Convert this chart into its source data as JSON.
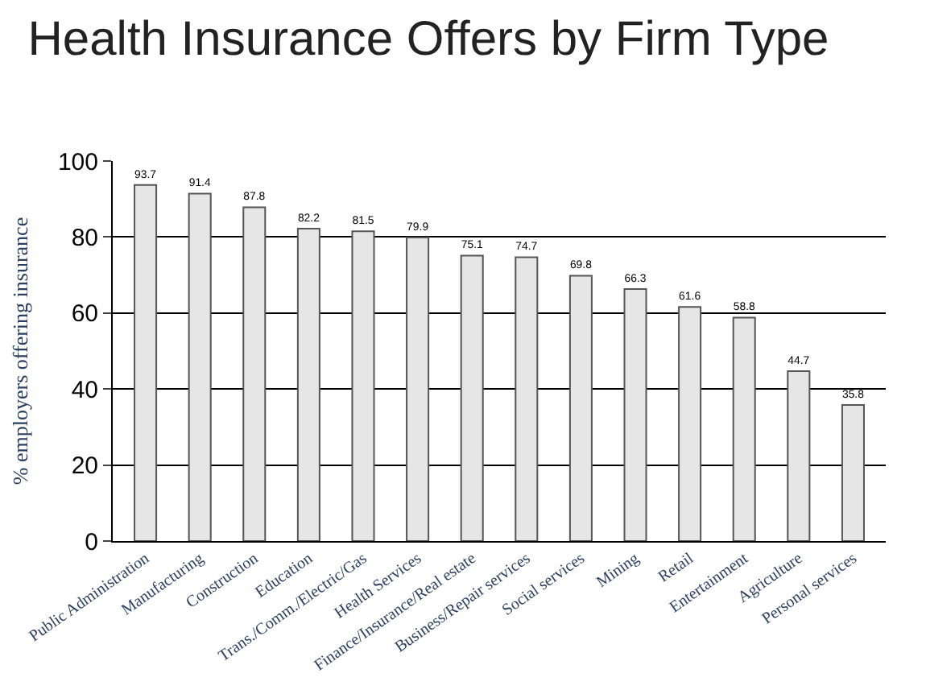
{
  "chart_data": {
    "type": "bar",
    "title": "Health Insurance Offers by Firm Type",
    "ylabel": "% employers offering insurance",
    "categories": [
      "Public Administration",
      "Manufacturing",
      "Construction",
      "Education",
      "Trans./Comm./Electric/Gas",
      "Health Services",
      "Finance/Insurance/Real estate",
      "Business/Repair services",
      "Social services",
      "Mining",
      "Retail",
      "Entertainment",
      "Agriculture",
      "Personal services"
    ],
    "values": [
      93.7,
      91.4,
      87.8,
      82.2,
      81.5,
      79.9,
      75.1,
      74.7,
      69.8,
      66.3,
      61.6,
      58.8,
      44.7,
      35.8
    ],
    "color": "#e6e6e6",
    "ylim": [
      0,
      100
    ],
    "yticks": [
      0,
      20,
      40,
      60,
      80,
      100
    ],
    "grid": "y",
    "data_labels": true
  }
}
